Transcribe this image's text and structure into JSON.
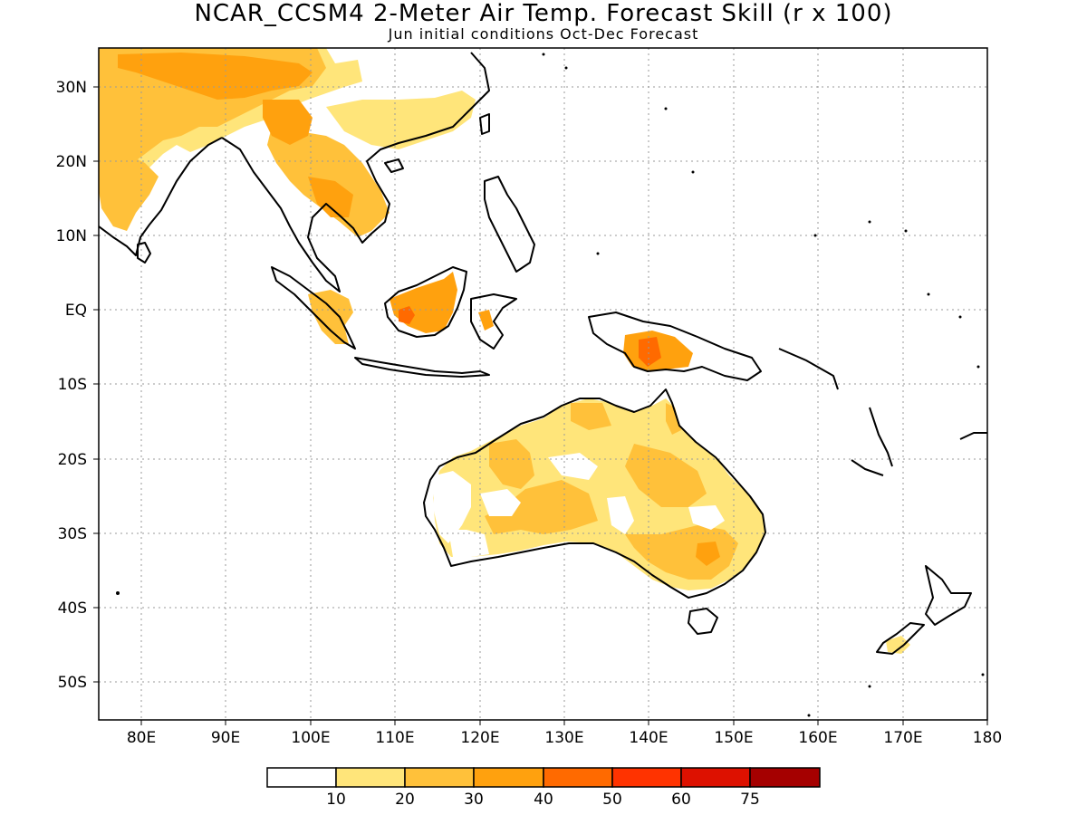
{
  "title": "NCAR_CCSM4 2-Meter Air Temp. Forecast Skill (r x 100)",
  "subtitle": "Jun initial conditions  Oct-Dec Forecast",
  "axes": {
    "lat_ticks": [
      "30N",
      "20N",
      "10N",
      "EQ",
      "10S",
      "20S",
      "30S",
      "40S",
      "50S"
    ],
    "lon_ticks": [
      "80E",
      "90E",
      "100E",
      "110E",
      "120E",
      "130E",
      "140E",
      "150E",
      "160E",
      "170E",
      "180"
    ]
  },
  "colorbar": {
    "labels": [
      "10",
      "20",
      "30",
      "40",
      "50",
      "60",
      "75"
    ],
    "colors": [
      "#ffffff",
      "#ffe57a",
      "#ffc13a",
      "#ffa10e",
      "#ff6a00",
      "#ff3300",
      "#dd1100",
      "#a50000"
    ]
  },
  "map": {
    "lon_range": [
      75,
      180
    ],
    "lat_range": [
      -55,
      35
    ],
    "grid": "dotted"
  }
}
